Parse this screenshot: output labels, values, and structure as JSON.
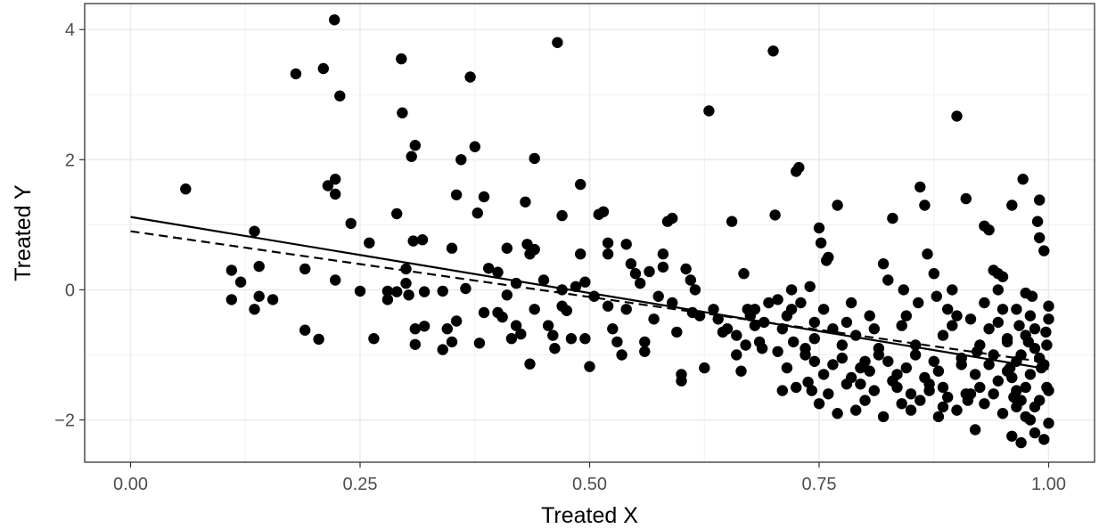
{
  "chart_data": {
    "type": "scatter",
    "xlabel": "Treated X",
    "ylabel": "Treated Y",
    "xlim": [
      -0.05,
      1.05
    ],
    "ylim": [
      -2.65,
      4.4
    ],
    "x_ticks": [
      0.0,
      0.25,
      0.5,
      0.75,
      1.0
    ],
    "x_tick_labels": [
      "0.00",
      "0.25",
      "0.50",
      "0.75",
      "1.00"
    ],
    "y_ticks": [
      -2,
      0,
      2,
      4
    ],
    "y_tick_labels": [
      "−2",
      "0",
      "2",
      "4"
    ],
    "grid": true,
    "legend": "none",
    "point_color": "#000000",
    "lines": [
      {
        "style": "solid",
        "x": [
          0.0,
          1.0
        ],
        "y": [
          1.12,
          -1.22
        ]
      },
      {
        "style": "dashed",
        "x": [
          0.0,
          1.0
        ],
        "y": [
          0.9,
          -1.12
        ]
      }
    ],
    "points": [
      [
        0.06,
        1.55
      ],
      [
        0.11,
        0.3
      ],
      [
        0.11,
        -0.15
      ],
      [
        0.12,
        0.12
      ],
      [
        0.135,
        0.9
      ],
      [
        0.135,
        -0.3
      ],
      [
        0.14,
        0.36
      ],
      [
        0.14,
        -0.1
      ],
      [
        0.155,
        -0.15
      ],
      [
        0.18,
        3.32
      ],
      [
        0.19,
        0.32
      ],
      [
        0.19,
        -0.62
      ],
      [
        0.205,
        -0.76
      ],
      [
        0.21,
        3.4
      ],
      [
        0.215,
        1.6
      ],
      [
        0.222,
        4.15
      ],
      [
        0.223,
        1.7
      ],
      [
        0.223,
        1.47
      ],
      [
        0.223,
        0.15
      ],
      [
        0.228,
        2.98
      ],
      [
        0.24,
        1.02
      ],
      [
        0.25,
        -0.02
      ],
      [
        0.26,
        0.72
      ],
      [
        0.265,
        -0.75
      ],
      [
        0.28,
        -0.02
      ],
      [
        0.28,
        -0.15
      ],
      [
        0.29,
        -0.03
      ],
      [
        0.29,
        1.17
      ],
      [
        0.295,
        3.55
      ],
      [
        0.296,
        2.72
      ],
      [
        0.3,
        0.32
      ],
      [
        0.3,
        0.1
      ],
      [
        0.303,
        -0.08
      ],
      [
        0.306,
        2.05
      ],
      [
        0.308,
        0.75
      ],
      [
        0.31,
        2.22
      ],
      [
        0.31,
        -0.6
      ],
      [
        0.31,
        -0.84
      ],
      [
        0.318,
        0.77
      ],
      [
        0.32,
        -0.03
      ],
      [
        0.32,
        -0.56
      ],
      [
        0.34,
        -0.92
      ],
      [
        0.34,
        -0.02
      ],
      [
        0.345,
        -0.6
      ],
      [
        0.35,
        0.64
      ],
      [
        0.35,
        -0.8
      ],
      [
        0.355,
        1.46
      ],
      [
        0.355,
        -0.48
      ],
      [
        0.36,
        2.0
      ],
      [
        0.365,
        0.02
      ],
      [
        0.37,
        3.27
      ],
      [
        0.375,
        2.2
      ],
      [
        0.378,
        1.18
      ],
      [
        0.38,
        -0.82
      ],
      [
        0.385,
        1.43
      ],
      [
        0.385,
        -0.35
      ],
      [
        0.39,
        0.33
      ],
      [
        0.4,
        0.27
      ],
      [
        0.4,
        -0.35
      ],
      [
        0.405,
        -0.42
      ],
      [
        0.41,
        0.64
      ],
      [
        0.41,
        -0.08
      ],
      [
        0.415,
        -0.75
      ],
      [
        0.42,
        0.1
      ],
      [
        0.42,
        -0.55
      ],
      [
        0.425,
        -0.68
      ],
      [
        0.43,
        1.35
      ],
      [
        0.432,
        0.7
      ],
      [
        0.435,
        0.55
      ],
      [
        0.435,
        -1.14
      ],
      [
        0.44,
        2.02
      ],
      [
        0.44,
        0.62
      ],
      [
        0.44,
        -0.3
      ],
      [
        0.45,
        0.15
      ],
      [
        0.455,
        -0.55
      ],
      [
        0.46,
        -0.7
      ],
      [
        0.462,
        -0.9
      ],
      [
        0.465,
        3.8
      ],
      [
        0.47,
        1.14
      ],
      [
        0.47,
        0.0
      ],
      [
        0.47,
        -0.25
      ],
      [
        0.475,
        -0.32
      ],
      [
        0.48,
        -0.75
      ],
      [
        0.485,
        0.05
      ],
      [
        0.49,
        1.62
      ],
      [
        0.49,
        0.55
      ],
      [
        0.495,
        -0.75
      ],
      [
        0.495,
        0.12
      ],
      [
        0.5,
        -1.18
      ],
      [
        0.505,
        -0.1
      ],
      [
        0.51,
        1.16
      ],
      [
        0.515,
        1.2
      ],
      [
        0.52,
        0.72
      ],
      [
        0.52,
        0.55
      ],
      [
        0.52,
        -0.25
      ],
      [
        0.525,
        -0.6
      ],
      [
        0.53,
        -0.8
      ],
      [
        0.535,
        -1.0
      ],
      [
        0.54,
        0.7
      ],
      [
        0.54,
        -0.3
      ],
      [
        0.545,
        0.4
      ],
      [
        0.55,
        0.25
      ],
      [
        0.555,
        0.1
      ],
      [
        0.56,
        -0.8
      ],
      [
        0.56,
        -0.95
      ],
      [
        0.565,
        0.28
      ],
      [
        0.57,
        -0.45
      ],
      [
        0.575,
        -0.1
      ],
      [
        0.58,
        0.55
      ],
      [
        0.58,
        0.35
      ],
      [
        0.585,
        1.05
      ],
      [
        0.59,
        1.1
      ],
      [
        0.59,
        -0.2
      ],
      [
        0.595,
        -0.65
      ],
      [
        0.6,
        -1.3
      ],
      [
        0.6,
        -1.4
      ],
      [
        0.605,
        0.32
      ],
      [
        0.61,
        0.15
      ],
      [
        0.612,
        -0.35
      ],
      [
        0.615,
        0.0
      ],
      [
        0.62,
        -0.4
      ],
      [
        0.625,
        -1.2
      ],
      [
        0.63,
        2.75
      ],
      [
        0.635,
        -0.3
      ],
      [
        0.64,
        -0.45
      ],
      [
        0.645,
        -0.65
      ],
      [
        0.65,
        -0.6
      ],
      [
        0.655,
        1.05
      ],
      [
        0.66,
        -0.7
      ],
      [
        0.665,
        -1.25
      ],
      [
        0.668,
        0.25
      ],
      [
        0.672,
        -0.3
      ],
      [
        0.675,
        -0.4
      ],
      [
        0.68,
        -0.55
      ],
      [
        0.685,
        -0.8
      ],
      [
        0.688,
        -0.9
      ],
      [
        0.69,
        -0.5
      ],
      [
        0.7,
        3.67
      ],
      [
        0.702,
        1.15
      ],
      [
        0.705,
        -0.95
      ],
      [
        0.71,
        -1.55
      ],
      [
        0.71,
        -0.6
      ],
      [
        0.715,
        -0.4
      ],
      [
        0.72,
        0.0
      ],
      [
        0.72,
        -0.3
      ],
      [
        0.722,
        -0.8
      ],
      [
        0.725,
        1.82
      ],
      [
        0.728,
        1.88
      ],
      [
        0.73,
        -0.2
      ],
      [
        0.735,
        -1.0
      ],
      [
        0.738,
        -1.42
      ],
      [
        0.74,
        0.05
      ],
      [
        0.742,
        -1.55
      ],
      [
        0.745,
        -0.5
      ],
      [
        0.745,
        -0.75
      ],
      [
        0.75,
        0.95
      ],
      [
        0.752,
        0.72
      ],
      [
        0.755,
        -0.3
      ],
      [
        0.758,
        0.45
      ],
      [
        0.76,
        0.5
      ],
      [
        0.765,
        -0.6
      ],
      [
        0.77,
        1.3
      ],
      [
        0.775,
        -0.85
      ],
      [
        0.78,
        -0.5
      ],
      [
        0.785,
        -0.2
      ],
      [
        0.79,
        -0.7
      ],
      [
        0.795,
        -1.2
      ],
      [
        0.8,
        -1.1
      ],
      [
        0.805,
        -0.4
      ],
      [
        0.81,
        -0.6
      ],
      [
        0.815,
        -0.9
      ],
      [
        0.82,
        0.4
      ],
      [
        0.825,
        0.15
      ],
      [
        0.83,
        1.1
      ],
      [
        0.835,
        -1.3
      ],
      [
        0.84,
        -0.55
      ],
      [
        0.842,
        0.0
      ],
      [
        0.845,
        -0.4
      ],
      [
        0.85,
        -1.6
      ],
      [
        0.855,
        -1.0
      ],
      [
        0.858,
        -0.2
      ],
      [
        0.86,
        1.58
      ],
      [
        0.865,
        1.3
      ],
      [
        0.868,
        0.55
      ],
      [
        0.87,
        -1.45
      ],
      [
        0.875,
        0.25
      ],
      [
        0.878,
        -0.1
      ],
      [
        0.88,
        -1.25
      ],
      [
        0.885,
        -0.7
      ],
      [
        0.885,
        -1.8
      ],
      [
        0.89,
        -0.3
      ],
      [
        0.895,
        0.0
      ],
      [
        0.9,
        2.67
      ],
      [
        0.9,
        -0.4
      ],
      [
        0.905,
        -1.05
      ],
      [
        0.91,
        1.4
      ],
      [
        0.912,
        -1.7
      ],
      [
        0.915,
        -1.6
      ],
      [
        0.92,
        -1.3
      ],
      [
        0.922,
        -0.95
      ],
      [
        0.925,
        -1.5
      ],
      [
        0.93,
        -0.2
      ],
      [
        0.935,
        -0.6
      ],
      [
        0.94,
        -1.0
      ],
      [
        0.945,
        0.0
      ],
      [
        0.945,
        -1.4
      ],
      [
        0.95,
        0.2
      ],
      [
        0.955,
        -0.8
      ],
      [
        0.958,
        -1.2
      ],
      [
        0.96,
        1.3
      ],
      [
        0.962,
        -1.65
      ],
      [
        0.965,
        -0.3
      ],
      [
        0.968,
        -0.55
      ],
      [
        0.97,
        -1.0
      ],
      [
        0.972,
        1.7
      ],
      [
        0.975,
        -1.5
      ],
      [
        0.978,
        -0.8
      ],
      [
        0.98,
        -1.3
      ],
      [
        0.982,
        -0.1
      ],
      [
        0.985,
        -1.8
      ],
      [
        0.988,
        1.05
      ],
      [
        0.99,
        0.8
      ],
      [
        0.992,
        -1.2
      ],
      [
        0.995,
        0.6
      ],
      [
        0.75,
        -1.75
      ],
      [
        0.76,
        -1.6
      ],
      [
        0.77,
        -1.9
      ],
      [
        0.78,
        -1.45
      ],
      [
        0.79,
        -1.85
      ],
      [
        0.8,
        -1.7
      ],
      [
        0.81,
        -1.55
      ],
      [
        0.82,
        -1.95
      ],
      [
        0.83,
        -1.4
      ],
      [
        0.84,
        -1.75
      ],
      [
        0.85,
        -1.85
      ],
      [
        0.86,
        -1.7
      ],
      [
        0.87,
        -1.55
      ],
      [
        0.88,
        -1.95
      ],
      [
        0.89,
        -1.65
      ],
      [
        0.9,
        -1.85
      ],
      [
        0.91,
        -1.6
      ],
      [
        0.92,
        -2.15
      ],
      [
        0.93,
        -1.75
      ],
      [
        0.94,
        -1.6
      ],
      [
        0.95,
        -1.9
      ],
      [
        0.96,
        -2.25
      ],
      [
        0.965,
        -1.8
      ],
      [
        0.97,
        -2.35
      ],
      [
        0.975,
        -1.95
      ],
      [
        0.98,
        -2.0
      ],
      [
        0.985,
        -2.2
      ],
      [
        0.99,
        -1.7
      ],
      [
        0.995,
        -2.3
      ],
      [
        1.0,
        -2.05
      ],
      [
        1.0,
        -1.55
      ],
      [
        1.0,
        -0.25
      ],
      [
        1.0,
        -0.45
      ],
      [
        0.998,
        -1.5
      ],
      [
        0.998,
        -0.85
      ],
      [
        0.93,
        0.98
      ],
      [
        0.935,
        0.92
      ],
      [
        0.94,
        0.3
      ],
      [
        0.945,
        0.25
      ],
      [
        0.95,
        -0.3
      ],
      [
        0.955,
        -0.75
      ],
      [
        0.96,
        -1.35
      ],
      [
        0.965,
        -1.55
      ],
      [
        0.97,
        -1.7
      ],
      [
        0.975,
        -0.05
      ],
      [
        0.98,
        -0.4
      ],
      [
        0.985,
        -0.9
      ],
      [
        0.99,
        -1.05
      ],
      [
        0.99,
        1.38
      ],
      [
        0.995,
        -1.15
      ],
      [
        0.997,
        -0.65
      ],
      [
        0.66,
        -1.0
      ],
      [
        0.67,
        -0.85
      ],
      [
        0.68,
        -0.3
      ],
      [
        0.695,
        -0.2
      ],
      [
        0.705,
        -0.15
      ],
      [
        0.715,
        -1.2
      ],
      [
        0.725,
        -1.5
      ],
      [
        0.735,
        -0.9
      ],
      [
        0.745,
        -1.1
      ],
      [
        0.755,
        -1.3
      ],
      [
        0.765,
        -1.15
      ],
      [
        0.775,
        -1.05
      ],
      [
        0.785,
        -1.35
      ],
      [
        0.795,
        -1.45
      ],
      [
        0.805,
        -1.25
      ],
      [
        0.815,
        -1.0
      ],
      [
        0.825,
        -1.1
      ],
      [
        0.835,
        -1.5
      ],
      [
        0.845,
        -1.2
      ],
      [
        0.855,
        -0.85
      ],
      [
        0.865,
        -1.35
      ],
      [
        0.875,
        -1.1
      ],
      [
        0.885,
        -1.5
      ],
      [
        0.895,
        -0.55
      ],
      [
        0.905,
        -1.15
      ],
      [
        0.915,
        -0.45
      ],
      [
        0.925,
        -0.85
      ],
      [
        0.935,
        -1.15
      ],
      [
        0.945,
        -0.5
      ],
      [
        0.955,
        -1.25
      ],
      [
        0.965,
        -1.1
      ],
      [
        0.975,
        -0.7
      ],
      [
        0.985,
        -0.6
      ]
    ]
  }
}
